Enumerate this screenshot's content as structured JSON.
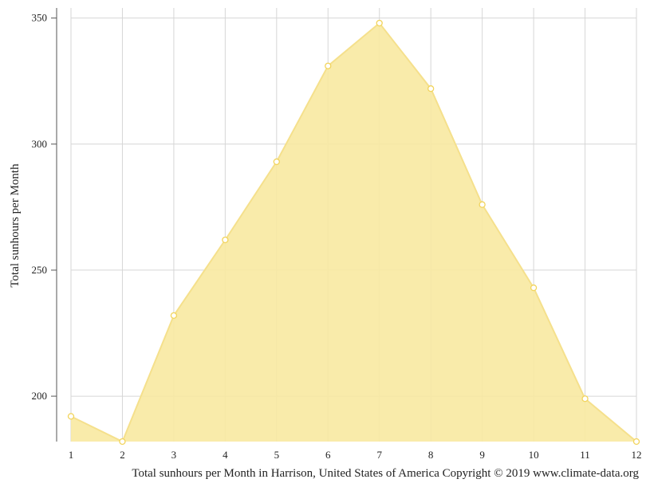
{
  "chart_data": {
    "type": "area",
    "x": [
      "1",
      "2",
      "3",
      "4",
      "5",
      "6",
      "7",
      "8",
      "9",
      "10",
      "11",
      "12"
    ],
    "series": [
      {
        "values": [
          192,
          182,
          232,
          262,
          293,
          331,
          348,
          322,
          276,
          243,
          199,
          182
        ]
      }
    ],
    "ylabel": "Total sunhours per Month",
    "xlabel": "",
    "yticks": [
      200,
      250,
      300,
      350
    ],
    "ylim": [
      182,
      354
    ],
    "grid": true,
    "caption": "Total sunhours per Month in Harrison, United States of America Copyright © 2019 www.climate-data.org",
    "colors": {
      "fill": "#f8e9a1",
      "line": "#f5e08c",
      "marker_stroke": "#f2d45c",
      "grid": "#d6d6d6",
      "axis": "#555555"
    }
  }
}
